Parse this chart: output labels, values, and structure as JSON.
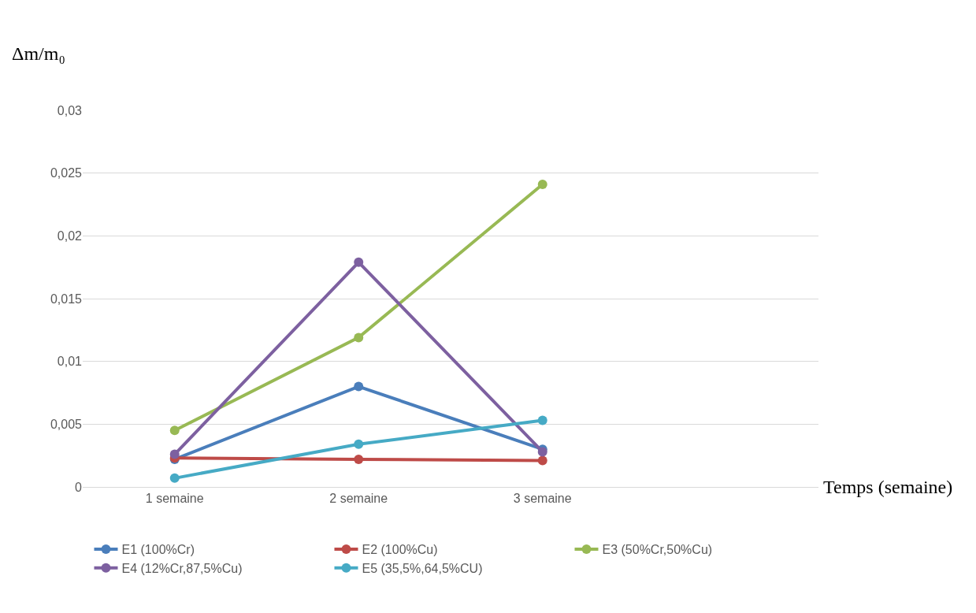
{
  "chart_data": {
    "type": "line",
    "ylabel": "Δm/m₀",
    "xlabel": "Temps (semaine)",
    "categories": [
      "1 semaine",
      "2 semaine",
      "3 semaine",
      null
    ],
    "series": [
      {
        "name": "E1 (100%Cr)",
        "color": "#4a7ebb",
        "values": [
          0.0022,
          0.008,
          0.003,
          null
        ]
      },
      {
        "name": "E2 (100%Cu)",
        "color": "#be4b48",
        "values": [
          0.0023,
          0.0022,
          0.0021,
          null
        ]
      },
      {
        "name": "E3 (50%Cr,50%Cu)",
        "color": "#98b954",
        "values": [
          0.0045,
          0.0119,
          0.0241,
          null
        ]
      },
      {
        "name": "E4 (12%Cr,87,5%Cu)",
        "color": "#7d60a0",
        "values": [
          0.0026,
          0.0179,
          0.0028,
          null
        ]
      },
      {
        "name": "E5 (35,5%,64,5%CU)",
        "color": "#46aac5",
        "values": [
          0.0007,
          0.0034,
          0.0053,
          null
        ]
      }
    ],
    "ylim": [
      0,
      0.03
    ],
    "yticks": [
      0,
      {
        "value": 0.005,
        "label": "0,005"
      },
      {
        "value": 0.01,
        "label": "0,01"
      },
      {
        "value": 0.015,
        "label": "0,015"
      },
      {
        "value": 0.02,
        "label": "0,02"
      },
      {
        "value": 0.025,
        "label": "0,025"
      },
      {
        "value": 0.03,
        "label": "0,03"
      }
    ],
    "grid": "y",
    "legend": "bottom",
    "marker": "circle",
    "line_style": "solid"
  }
}
